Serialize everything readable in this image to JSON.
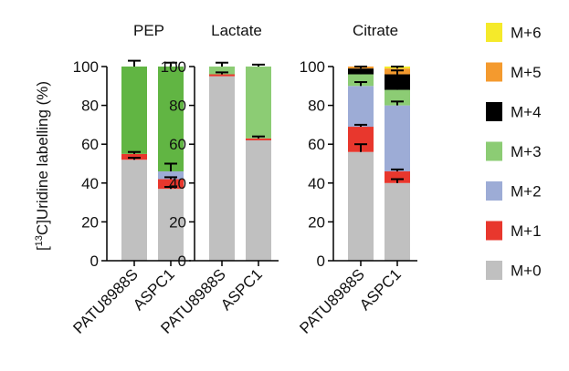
{
  "y_axis_label_prefix": "[",
  "y_axis_label_sup": "13",
  "y_axis_label_rest": "C]Uridine labelling (%)",
  "chart_data": [
    {
      "type": "bar",
      "stacked": true,
      "title": "PEP",
      "categories": [
        "PATU8988S",
        "ASPC1"
      ],
      "ylim": [
        0,
        100
      ],
      "yticks": [
        0,
        20,
        40,
        60,
        80,
        100
      ],
      "grid": false,
      "series": [
        {
          "name": "M+0",
          "color": "#c0c0c0",
          "values": [
            52,
            37
          ]
        },
        {
          "name": "M+1",
          "color": "#e8372d",
          "values": [
            3,
            5
          ]
        },
        {
          "name": "M+2",
          "color": "#9dacd6",
          "values": [
            0,
            4
          ]
        },
        {
          "name": "M+3",
          "color": "#61b543",
          "values": [
            45,
            54
          ]
        },
        {
          "name": "M+4",
          "color": "#000000",
          "values": [
            0,
            0
          ]
        },
        {
          "name": "M+5",
          "color": "#f49a2e",
          "values": [
            0,
            0
          ]
        },
        {
          "name": "M+6",
          "color": "#f5ea2a",
          "values": [
            0,
            0
          ]
        }
      ],
      "error_bars": [
        {
          "category": "PATU8988S",
          "series": "M+0",
          "at": 52,
          "err": 1
        },
        {
          "category": "PATU8988S",
          "series": "M+1",
          "at": 55,
          "err": 1
        },
        {
          "category": "PATU8988S",
          "series": "M+3",
          "at": 100,
          "err": 3
        },
        {
          "category": "ASPC1",
          "series": "M+0",
          "at": 37,
          "err": 1
        },
        {
          "category": "ASPC1",
          "series": "M+1",
          "at": 42,
          "err": 1
        },
        {
          "category": "ASPC1",
          "series": "M+2",
          "at": 46,
          "err": 4
        },
        {
          "category": "ASPC1",
          "series": "M+3",
          "at": 100,
          "err": 2
        }
      ]
    },
    {
      "type": "bar",
      "stacked": true,
      "title": "Lactate",
      "categories": [
        "PATU8988S",
        "ASPC1"
      ],
      "ylim": [
        0,
        100
      ],
      "yticks": [
        0,
        20,
        40,
        60,
        80,
        100
      ],
      "grid": false,
      "series": [
        {
          "name": "M+0",
          "color": "#c0c0c0",
          "values": [
            95,
            62
          ]
        },
        {
          "name": "M+1",
          "color": "#e8372d",
          "values": [
            1,
            1
          ]
        },
        {
          "name": "M+2",
          "color": "#9dacd6",
          "values": [
            0,
            0
          ]
        },
        {
          "name": "M+3",
          "color": "#8ccc74",
          "values": [
            4,
            37
          ]
        },
        {
          "name": "M+4",
          "color": "#000000",
          "values": [
            0,
            0
          ]
        },
        {
          "name": "M+5",
          "color": "#f49a2e",
          "values": [
            0,
            0
          ]
        },
        {
          "name": "M+6",
          "color": "#f5ea2a",
          "values": [
            0,
            0
          ]
        }
      ],
      "error_bars": [
        {
          "category": "PATU8988S",
          "series": "M+1",
          "at": 96,
          "err": 1
        },
        {
          "category": "PATU8988S",
          "series": "M+3",
          "at": 100,
          "err": 2
        },
        {
          "category": "ASPC1",
          "series": "M+1",
          "at": 63,
          "err": 1
        },
        {
          "category": "ASPC1",
          "series": "M+3",
          "at": 100,
          "err": 1
        }
      ]
    },
    {
      "type": "bar",
      "stacked": true,
      "title": "Citrate",
      "categories": [
        "PATU8988S",
        "ASPC1"
      ],
      "ylim": [
        0,
        100
      ],
      "yticks": [
        0,
        20,
        40,
        60,
        80,
        100
      ],
      "grid": false,
      "series": [
        {
          "name": "M+0",
          "color": "#c0c0c0",
          "values": [
            56,
            40
          ]
        },
        {
          "name": "M+1",
          "color": "#e8372d",
          "values": [
            13,
            6
          ]
        },
        {
          "name": "M+2",
          "color": "#9dacd6",
          "values": [
            21,
            34
          ]
        },
        {
          "name": "M+3",
          "color": "#8ccc74",
          "values": [
            6,
            8
          ]
        },
        {
          "name": "M+4",
          "color": "#000000",
          "values": [
            3,
            8
          ]
        },
        {
          "name": "M+5",
          "color": "#f49a2e",
          "values": [
            1,
            3
          ]
        },
        {
          "name": "M+6",
          "color": "#f5ea2a",
          "values": [
            0,
            1
          ]
        }
      ],
      "error_bars": [
        {
          "category": "PATU8988S",
          "series": "M+0",
          "at": 56,
          "err": 4
        },
        {
          "category": "PATU8988S",
          "series": "M+1",
          "at": 69,
          "err": 1
        },
        {
          "category": "PATU8988S",
          "series": "M+2",
          "at": 90,
          "err": 2
        },
        {
          "category": "PATU8988S",
          "series": "M+3",
          "at": 96,
          "err": 2
        },
        {
          "category": "PATU8988S",
          "series": "M+4",
          "at": 99,
          "err": 1
        },
        {
          "category": "ASPC1",
          "series": "M+0",
          "at": 40,
          "err": 2
        },
        {
          "category": "ASPC1",
          "series": "M+1",
          "at": 46,
          "err": 1
        },
        {
          "category": "ASPC1",
          "series": "M+2",
          "at": 80,
          "err": 2
        },
        {
          "category": "ASPC1",
          "series": "M+3",
          "at": 88,
          "err": 2
        },
        {
          "category": "ASPC1",
          "series": "M+4",
          "at": 96,
          "err": 2
        },
        {
          "category": "ASPC1",
          "series": "M+5",
          "at": 99,
          "err": 1
        }
      ]
    }
  ],
  "legend": {
    "placement": "right",
    "items": [
      {
        "label": "M+6",
        "color": "#f5ea2a"
      },
      {
        "label": "M+5",
        "color": "#f49a2e"
      },
      {
        "label": "M+4",
        "color": "#000000"
      },
      {
        "label": "M+3",
        "color": "#8ccc74"
      },
      {
        "label": "M+2",
        "color": "#9dacd6"
      },
      {
        "label": "M+1",
        "color": "#e8372d"
      },
      {
        "label": "M+0",
        "color": "#c0c0c0"
      }
    ]
  }
}
